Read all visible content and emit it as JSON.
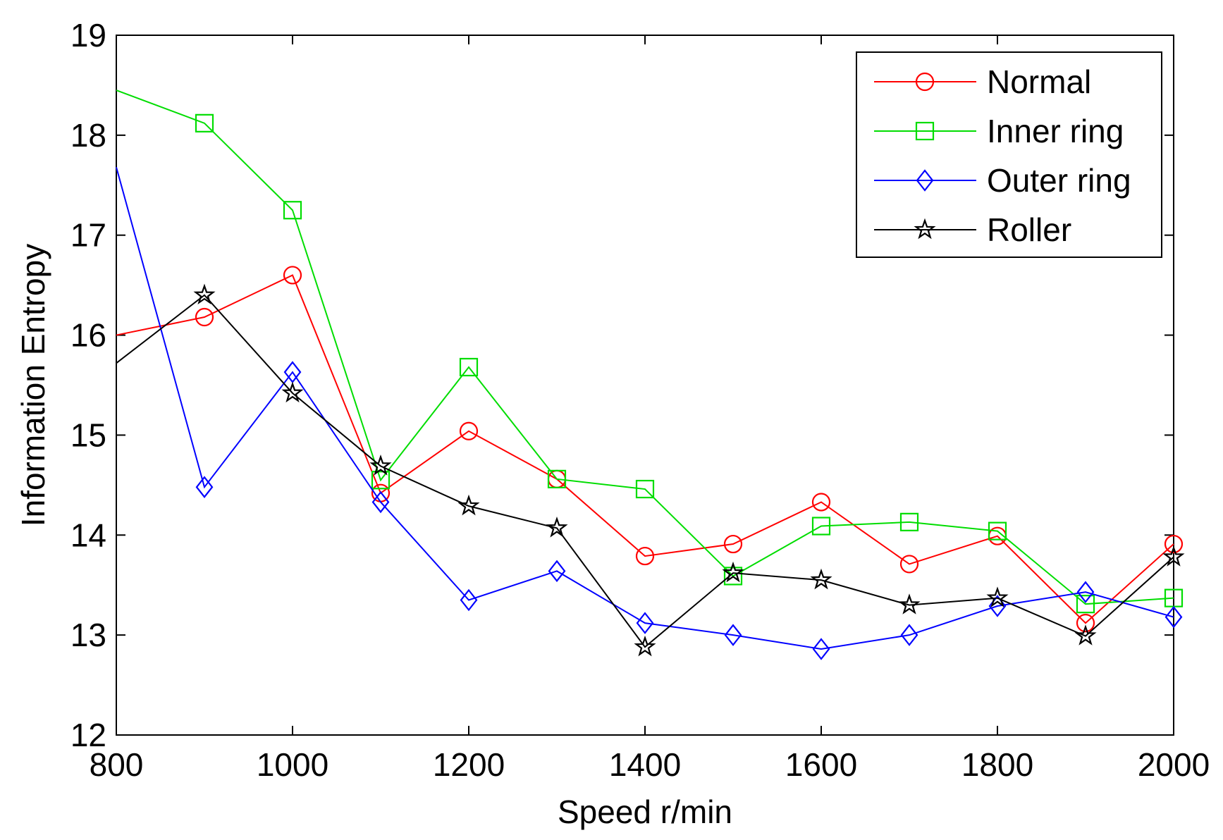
{
  "chart_data": {
    "type": "line",
    "title": "",
    "xlabel": "Speed r/min",
    "ylabel": "Information Entropy",
    "xlim": [
      800,
      2000
    ],
    "ylim": [
      12,
      19
    ],
    "xticks": [
      800,
      1000,
      1200,
      1400,
      1600,
      1800,
      2000
    ],
    "yticks": [
      12,
      13,
      14,
      15,
      16,
      17,
      18,
      19
    ],
    "grid": false,
    "legend_position": "top-right",
    "x": [
      800,
      900,
      1000,
      1100,
      1200,
      1300,
      1400,
      1500,
      1600,
      1700,
      1800,
      1900,
      2000
    ],
    "series": [
      {
        "name": "Normal",
        "color": "#ff0000",
        "marker": "circle",
        "values": [
          16.0,
          16.18,
          16.6,
          14.42,
          15.04,
          14.56,
          13.79,
          13.91,
          14.33,
          13.71,
          13.99,
          13.12,
          13.91
        ]
      },
      {
        "name": "Inner ring",
        "color": "#00dd00",
        "marker": "square",
        "values": [
          18.45,
          18.12,
          17.25,
          14.55,
          15.68,
          14.56,
          14.46,
          13.59,
          14.09,
          14.13,
          14.04,
          13.31,
          13.37
        ]
      },
      {
        "name": "Outer ring",
        "color": "#0000ff",
        "marker": "diamond",
        "values": [
          17.68,
          14.48,
          15.63,
          14.33,
          13.35,
          13.64,
          13.12,
          13.0,
          12.86,
          13.0,
          13.29,
          13.43,
          13.18
        ]
      },
      {
        "name": "Roller",
        "color": "#000000",
        "marker": "star",
        "values": [
          15.72,
          16.4,
          15.42,
          14.69,
          14.29,
          14.07,
          12.88,
          13.62,
          13.55,
          13.3,
          13.37,
          12.99,
          13.78
        ]
      }
    ]
  }
}
